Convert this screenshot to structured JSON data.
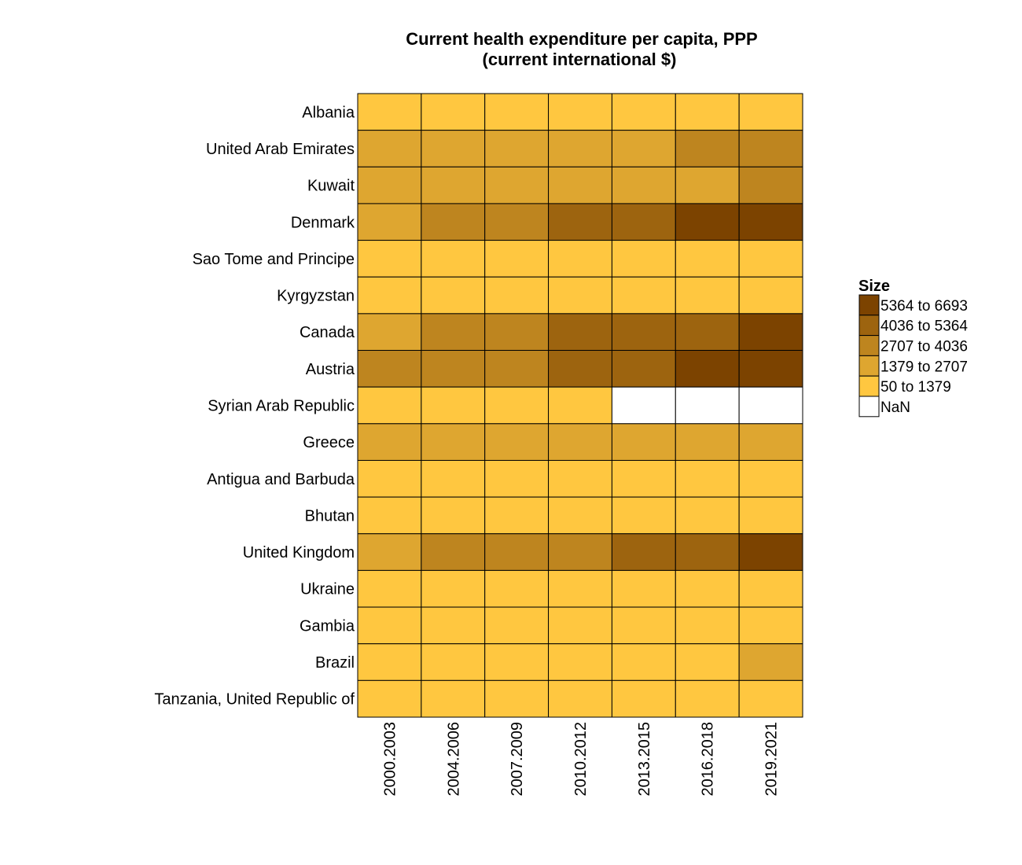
{
  "chart_data": {
    "type": "heatmap",
    "title_line1": "Current health expenditure per capita, PPP",
    "title_line2": "(current international $)",
    "rows": [
      "Albania",
      "United Arab Emirates",
      "Kuwait",
      "Denmark",
      "Sao Tome and Principe",
      "Kyrgyzstan",
      "Canada",
      "Austria",
      "Syrian Arab Republic",
      "Greece",
      "Antigua and Barbuda",
      "Bhutan",
      "United Kingdom",
      "Ukraine",
      "Gambia",
      "Brazil",
      "Tanzania, United Republic of"
    ],
    "columns": [
      "2000.2003",
      "2004.2006",
      "2007.2009",
      "2010.2012",
      "2013.2015",
      "2016.2018",
      "2019.2021"
    ],
    "bins": [
      [
        0,
        0,
        0,
        0,
        0,
        0,
        0
      ],
      [
        1,
        1,
        1,
        1,
        1,
        2,
        2
      ],
      [
        1,
        1,
        1,
        1,
        1,
        1,
        2
      ],
      [
        1,
        2,
        2,
        3,
        3,
        4,
        4
      ],
      [
        0,
        0,
        0,
        0,
        0,
        0,
        0
      ],
      [
        0,
        0,
        0,
        0,
        0,
        0,
        0
      ],
      [
        1,
        2,
        2,
        3,
        3,
        3,
        4
      ],
      [
        2,
        2,
        2,
        3,
        3,
        4,
        4
      ],
      [
        0,
        0,
        0,
        0,
        null,
        null,
        null
      ],
      [
        1,
        1,
        1,
        1,
        1,
        1,
        1
      ],
      [
        0,
        0,
        0,
        0,
        0,
        0,
        0
      ],
      [
        0,
        0,
        0,
        0,
        0,
        0,
        0
      ],
      [
        1,
        2,
        2,
        2,
        3,
        3,
        4
      ],
      [
        0,
        0,
        0,
        0,
        0,
        0,
        0
      ],
      [
        0,
        0,
        0,
        0,
        0,
        0,
        0
      ],
      [
        0,
        0,
        0,
        0,
        0,
        0,
        1
      ],
      [
        0,
        0,
        0,
        0,
        0,
        0,
        0
      ]
    ],
    "legend": {
      "title": "Size",
      "entries": [
        {
          "label": "5364 to 6693",
          "bin": 4
        },
        {
          "label": "4036 to 5364",
          "bin": 3
        },
        {
          "label": "2707 to 4036",
          "bin": 2
        },
        {
          "label": "1379 to 2707",
          "bin": 1
        },
        {
          "label": "50 to 1379",
          "bin": 0
        },
        {
          "label": "NaN",
          "bin": null
        }
      ]
    },
    "bin_colors": [
      "#FFC740",
      "#DEA630",
      "#BE851F",
      "#9D640F",
      "#7C4300"
    ],
    "nan_color": "#FFFFFF"
  }
}
